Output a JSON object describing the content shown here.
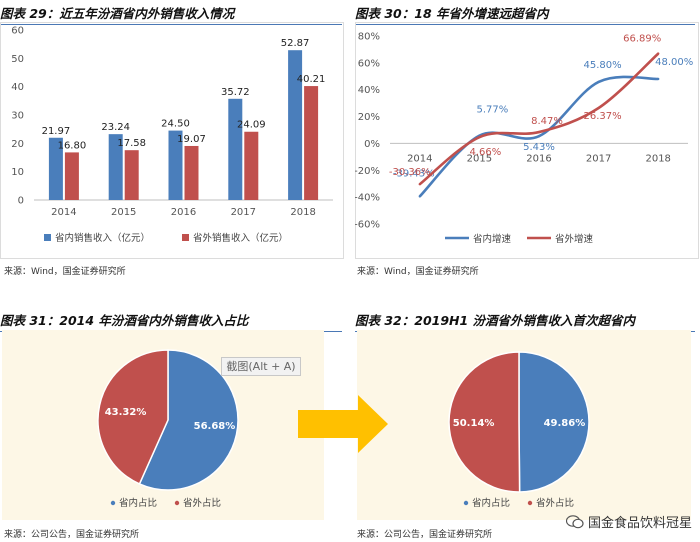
{
  "colors": {
    "blue": "#4a7ebb",
    "red": "#c0504d",
    "pie_bg": "#fdf7e6",
    "arrow": "#ffc000"
  },
  "fig29": {
    "title": "图表 29：近五年汾酒省内外销售收入情况",
    "source": "来源：Wind，国金证券研究所",
    "legend": [
      "省内销售收入（亿元）",
      "省外销售收入（亿元）"
    ]
  },
  "fig30": {
    "title": "图表 30：18 年省外增速远超省内",
    "source": "来源：Wind，国金证券研究所",
    "legend": [
      "省内增速",
      "省外增速"
    ]
  },
  "fig31": {
    "title": "图表 31：2014 年汾酒省内外销售收入占比",
    "source": "来源：公司公告，国金证券研究所",
    "legend": [
      "省内占比",
      "省外占比"
    ],
    "overlay": "截图(Alt + A)"
  },
  "fig32": {
    "title": "图表 32：2019H1 汾酒省外销售收入首次超省内",
    "source": "来源：公司公告，国金证券研究所",
    "legend": [
      "省内占比",
      "省外占比"
    ]
  },
  "watermark": "国金食品饮料冠星",
  "chart_data": [
    {
      "type": "bar",
      "categories": [
        "2014",
        "2015",
        "2016",
        "2017",
        "2018"
      ],
      "ylim": [
        0,
        60
      ],
      "yticks": [
        0,
        10,
        20,
        30,
        40,
        50,
        60
      ],
      "series": [
        {
          "name": "省内销售收入（亿元）",
          "values": [
            21.97,
            23.24,
            24.5,
            35.72,
            52.87
          ],
          "labels": [
            "21.97",
            "23.24",
            "24.50",
            "35.72",
            "52.87"
          ]
        },
        {
          "name": "省外销售收入（亿元）",
          "values": [
            16.8,
            17.58,
            19.07,
            24.09,
            40.21
          ],
          "labels": [
            "16.80",
            "17.58",
            "19.07",
            "24.09",
            "40.21"
          ]
        }
      ]
    },
    {
      "type": "line",
      "categories": [
        "2014",
        "2015",
        "2016",
        "2017",
        "2018"
      ],
      "ylim": [
        -60,
        80
      ],
      "yticks": [
        "-60%",
        "-40%",
        "-20%",
        "0%",
        "20%",
        "40%",
        "60%",
        "80%"
      ],
      "series": [
        {
          "name": "省内增速",
          "values": [
            -39.43,
            5.77,
            5.43,
            45.8,
            48.0
          ],
          "labels": [
            "-39.43%",
            "5.77%",
            "5.43%",
            "45.80%",
            "48.00%"
          ]
        },
        {
          "name": "省外增速",
          "values": [
            -30.36,
            4.66,
            8.47,
            26.37,
            66.89
          ],
          "labels": [
            "-30.36%",
            "4.66%",
            "8.47%",
            "26.37%",
            "66.89%"
          ]
        }
      ]
    },
    {
      "type": "pie",
      "labels": [
        "省内占比",
        "省外占比"
      ],
      "values": [
        56.68,
        43.32
      ],
      "value_labels": [
        "56.68%",
        "43.32%"
      ]
    },
    {
      "type": "pie",
      "labels": [
        "省内占比",
        "省外占比"
      ],
      "values": [
        49.86,
        50.14
      ],
      "value_labels": [
        "49.86%",
        "50.14%"
      ]
    }
  ]
}
